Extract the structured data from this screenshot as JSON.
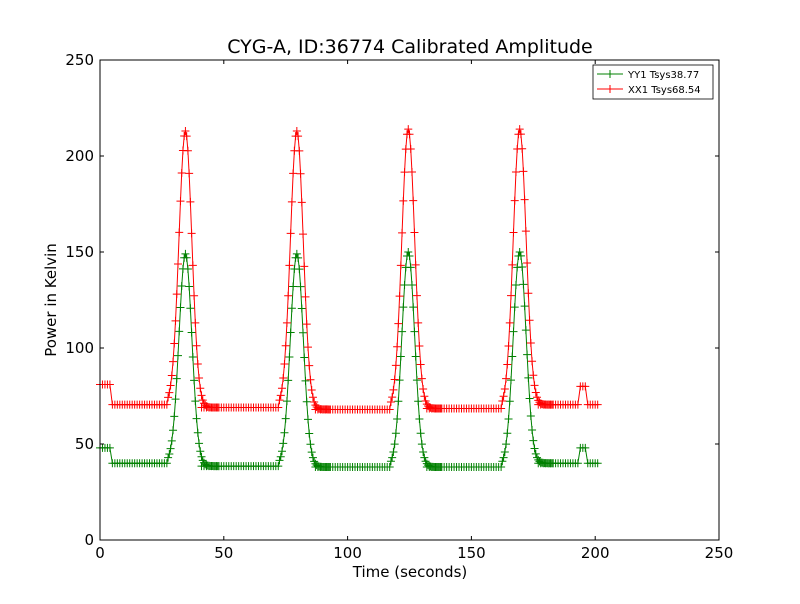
{
  "chart_data": {
    "type": "line",
    "title": "CYG-A, ID:36774 Calibrated Amplitude",
    "xlabel": "Time (seconds)",
    "ylabel": "Power in Kelvin",
    "xlim": [
      0,
      250
    ],
    "ylim": [
      0,
      250
    ],
    "xticks": [
      0,
      50,
      100,
      150,
      200,
      250
    ],
    "yticks": [
      0,
      50,
      100,
      150,
      200,
      250
    ],
    "grid": false,
    "legend_position": "top-right",
    "marker": "plus",
    "series": [
      {
        "name": "YY1 Tsys38.77",
        "color": "#008000",
        "baseline_segments": [
          {
            "x": [
              0,
              1,
              2,
              3,
              4
            ],
            "level": 48
          },
          {
            "x_start": 5,
            "x_end": 27,
            "level": 40
          },
          {
            "x_start": 41,
            "x_end": 72,
            "level": 38.5
          },
          {
            "x_start": 87,
            "x_end": 117,
            "level": 38
          },
          {
            "x_start": 132,
            "x_end": 162,
            "level": 38
          },
          {
            "x_start": 177,
            "x_end": 193,
            "level": 40
          },
          {
            "x": [
              194,
              195,
              196
            ],
            "level": 48
          },
          {
            "x_start": 197,
            "x_end": 201,
            "level": 40
          }
        ],
        "peaks": [
          {
            "x": 34.5,
            "y": 149
          },
          {
            "x": 79.5,
            "y": 149
          },
          {
            "x": 124.5,
            "y": 150
          },
          {
            "x": 169.5,
            "y": 150
          }
        ]
      },
      {
        "name": "XX1 Tsys68.54",
        "color": "#ff0000",
        "baseline_segments": [
          {
            "x": [
              0,
              1,
              2,
              3,
              4
            ],
            "level": 81
          },
          {
            "x_start": 5,
            "x_end": 27,
            "level": 70.5
          },
          {
            "x_start": 41,
            "x_end": 72,
            "level": 69
          },
          {
            "x_start": 87,
            "x_end": 117,
            "level": 68
          },
          {
            "x_start": 132,
            "x_end": 162,
            "level": 68.5
          },
          {
            "x_start": 177,
            "x_end": 193,
            "level": 70.5
          },
          {
            "x": [
              194,
              195,
              196
            ],
            "level": 80
          },
          {
            "x_start": 197,
            "x_end": 201,
            "level": 70.5
          }
        ],
        "peaks": [
          {
            "x": 34.5,
            "y": 213
          },
          {
            "x": 79.5,
            "y": 213
          },
          {
            "x": 124.5,
            "y": 214
          },
          {
            "x": 169.5,
            "y": 214
          }
        ]
      }
    ]
  }
}
